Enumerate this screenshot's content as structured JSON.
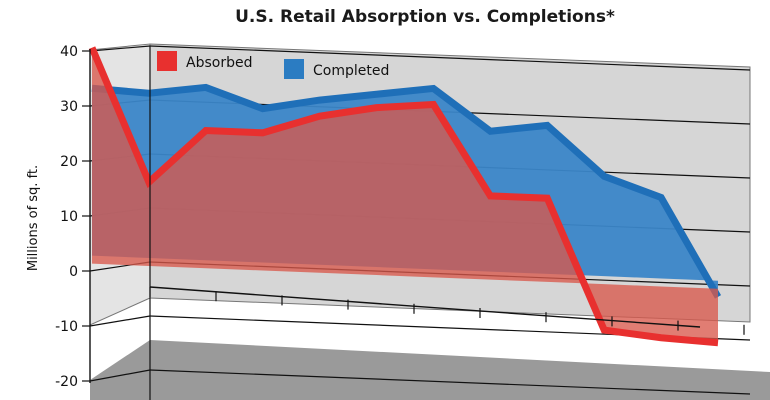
{
  "chart_data": {
    "type": "area",
    "title": "U.S. Retail Absorption vs. Completions*",
    "ylabel": "Millions of sq. ft.",
    "ylim": [
      -20,
      40
    ],
    "yticks": [
      40,
      30,
      20,
      10,
      0,
      -10,
      -20
    ],
    "grid": true,
    "legend_placement": "top-left",
    "series": [
      {
        "name": "Absorbed",
        "color": "#e8302f",
        "values": [
          40,
          15.5,
          25.5,
          25.5,
          29,
          31,
          32,
          15.5,
          15.5,
          -8.5,
          -9.5,
          -10
        ]
      },
      {
        "name": "Completed",
        "color": "#2b7cc2",
        "values": [
          31,
          30.5,
          32,
          28.5,
          30.5,
          32,
          33.5,
          26,
          27.5,
          18.5,
          15,
          -3
        ]
      }
    ]
  }
}
